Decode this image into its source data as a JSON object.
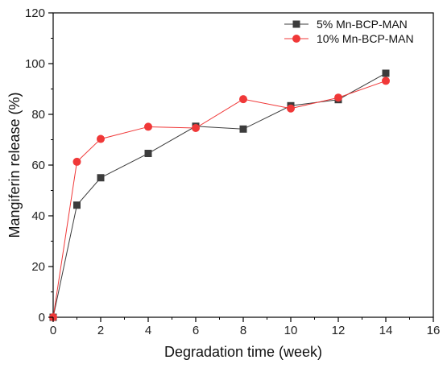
{
  "chart_data": {
    "type": "line",
    "xlabel": "Degradation time (week)",
    "ylabel": "Mangiferin release (%)",
    "xlim": [
      0,
      16
    ],
    "ylim": [
      0,
      120
    ],
    "xticks": [
      0,
      2,
      4,
      6,
      8,
      10,
      12,
      14,
      16
    ],
    "yticks": [
      0,
      20,
      40,
      60,
      80,
      100,
      120
    ],
    "grid": false,
    "legend_position": "top-right",
    "series": [
      {
        "name": "5% Mn-BCP-MAN",
        "color": "#3c3c3c",
        "marker": "square",
        "x": [
          0,
          1,
          2,
          4,
          6,
          8,
          10,
          12,
          14
        ],
        "y": [
          0,
          44.2,
          55,
          64.6,
          75.3,
          74.2,
          83.4,
          85.8,
          96.2
        ]
      },
      {
        "name": "10% Mn-BCP-MAN",
        "color": "#f03838",
        "marker": "circle",
        "x": [
          0,
          1,
          2,
          4,
          6,
          8,
          10,
          12,
          14
        ],
        "y": [
          0,
          61.3,
          70.3,
          75.1,
          74.6,
          86.0,
          82.3,
          86.6,
          93.2
        ]
      }
    ]
  }
}
